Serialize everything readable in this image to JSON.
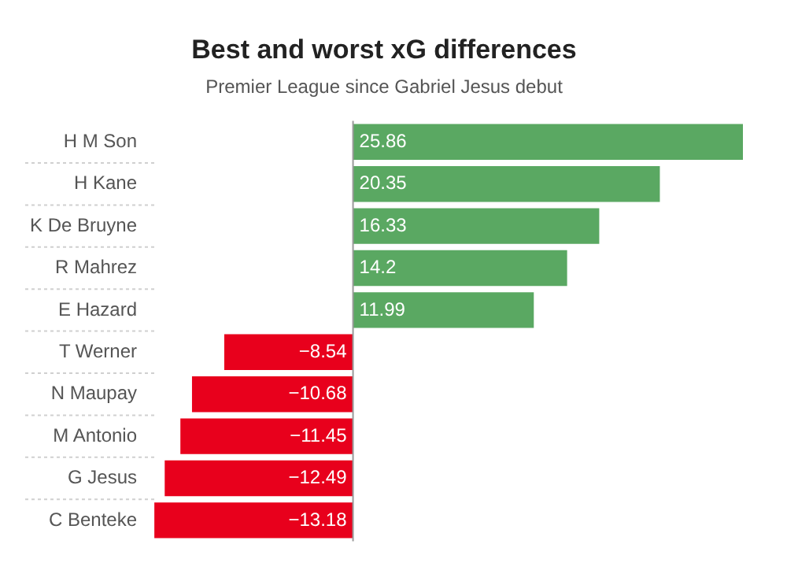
{
  "chart_data": {
    "type": "bar",
    "orientation": "horizontal",
    "title": "Best and worst xG differences",
    "subtitle": "Premier League since Gabriel Jesus debut",
    "categories": [
      "H M Son",
      "H Kane",
      "K De Bruyne",
      "R Mahrez",
      "E Hazard",
      "T Werner",
      "N Maupay",
      "M Antonio",
      "G Jesus",
      "C Benteke"
    ],
    "values": [
      25.86,
      20.35,
      16.33,
      14.2,
      11.99,
      -8.54,
      -10.68,
      -11.45,
      -12.49,
      -13.18
    ],
    "colors": [
      "#5aa862",
      "#5aa862",
      "#5aa862",
      "#5aa862",
      "#5aa862",
      "#e8001c",
      "#e8001c",
      "#e8001c",
      "#e8001c",
      "#e8001c"
    ],
    "data_labels": true,
    "legend": false
  }
}
